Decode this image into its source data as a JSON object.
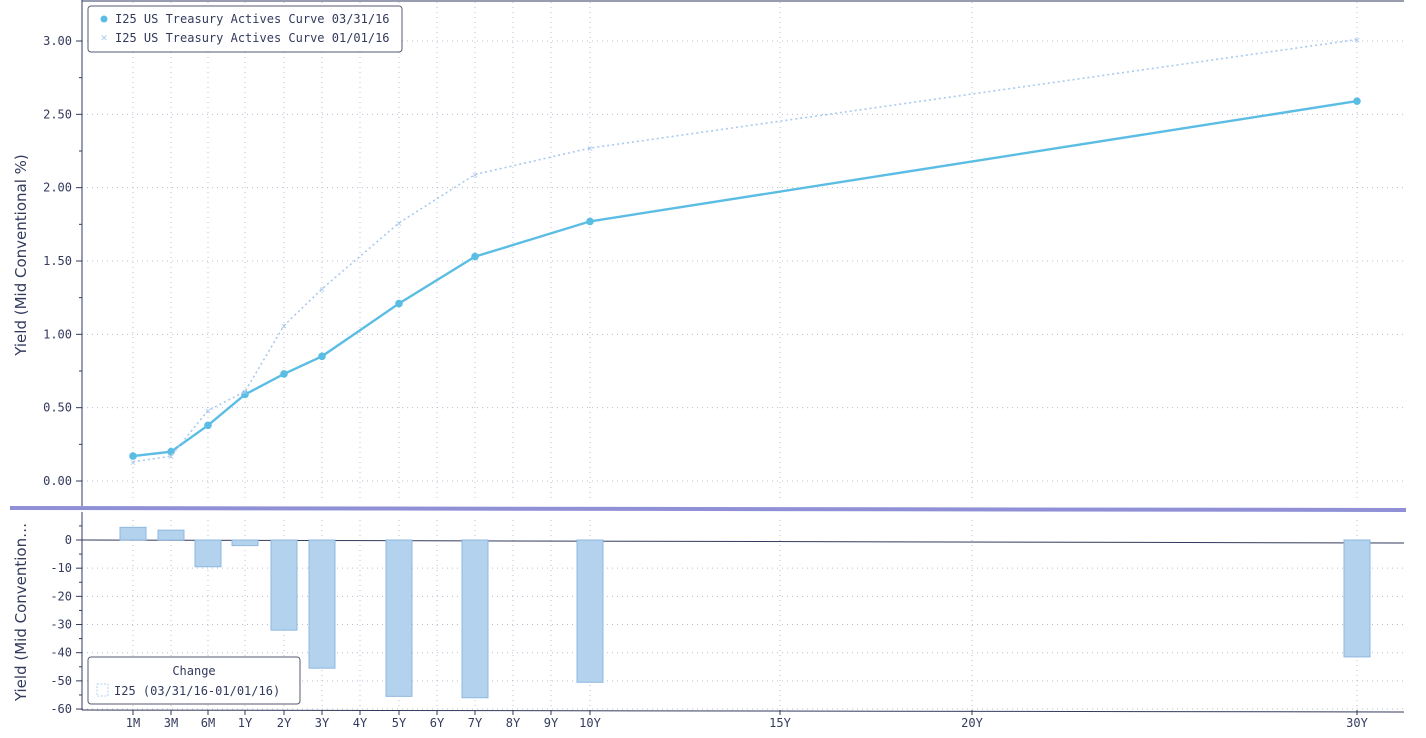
{
  "chart_data": [
    {
      "type": "line",
      "ylabel": "Yield (Mid Conventional %)",
      "ylim": [
        0,
        3.0
      ],
      "yticks": [
        "0.00",
        "0.50",
        "1.00",
        "1.50",
        "2.00",
        "2.50",
        "3.00"
      ],
      "x_tenors_years": [
        0.0833,
        0.25,
        0.5,
        1,
        2,
        3,
        5,
        7,
        10,
        30
      ],
      "grid": true,
      "legend_position": "top-left",
      "series": [
        {
          "name": "I25 US Treasury Actives Curve 03/31/16",
          "style": "solid",
          "marker": "circle",
          "color": "#5bbde4",
          "values": [
            0.17,
            0.2,
            0.38,
            0.59,
            0.73,
            0.85,
            1.21,
            1.53,
            1.77,
            2.59
          ]
        },
        {
          "name": "I25 US Treasury Actives Curve 01/01/16",
          "style": "dotted",
          "marker": "x",
          "color": "#a9c9ef",
          "values": [
            0.13,
            0.17,
            0.48,
            0.61,
            1.06,
            1.31,
            1.76,
            2.09,
            2.27,
            3.01
          ]
        }
      ]
    },
    {
      "type": "bar",
      "ylabel": "Yield (Mid Convention…",
      "ylim": [
        -62,
        7
      ],
      "yticks": [
        "0",
        "-10",
        "-20",
        "-30",
        "-40",
        "-50",
        "-60"
      ],
      "ytick_values": [
        0,
        -10,
        -20,
        -30,
        -40,
        -50,
        -60
      ],
      "x_tenors_years": [
        0.0833,
        0.25,
        0.5,
        1,
        2,
        3,
        5,
        7,
        10,
        30
      ],
      "grid": true,
      "legend_position": "bottom-left",
      "legend_title": "Change",
      "series": [
        {
          "name": "I25 (03/31/16-01/01/16)",
          "color": "#b3d2ee",
          "values": [
            4.5,
            3.5,
            -9.5,
            -2,
            -32,
            -45.5,
            -55.5,
            -56,
            -50.5,
            -41.5
          ]
        }
      ]
    }
  ],
  "x_axis": {
    "ticks": [
      {
        "label": "1M",
        "years": 0.0833
      },
      {
        "label": "3M",
        "years": 0.25
      },
      {
        "label": "6M",
        "years": 0.5
      },
      {
        "label": "1Y",
        "years": 1
      },
      {
        "label": "2Y",
        "years": 2
      },
      {
        "label": "3Y",
        "years": 3
      },
      {
        "label": "4Y",
        "years": 4
      },
      {
        "label": "5Y",
        "years": 5
      },
      {
        "label": "6Y",
        "years": 6
      },
      {
        "label": "7Y",
        "years": 7
      },
      {
        "label": "8Y",
        "years": 8
      },
      {
        "label": "9Y",
        "years": 9
      },
      {
        "label": "10Y",
        "years": 10
      },
      {
        "label": "15Y",
        "years": 15
      },
      {
        "label": "20Y",
        "years": 20
      },
      {
        "label": "30Y",
        "years": 30
      }
    ]
  },
  "colors": {
    "axis": "#333a5c",
    "grid": "#b9bdd2",
    "divider": "#8f90d6",
    "line_current": "#5bbde4",
    "line_previous": "#a9c9ef",
    "bar_fill": "#b3d2ee",
    "bar_stroke": "#8fb8e0"
  }
}
